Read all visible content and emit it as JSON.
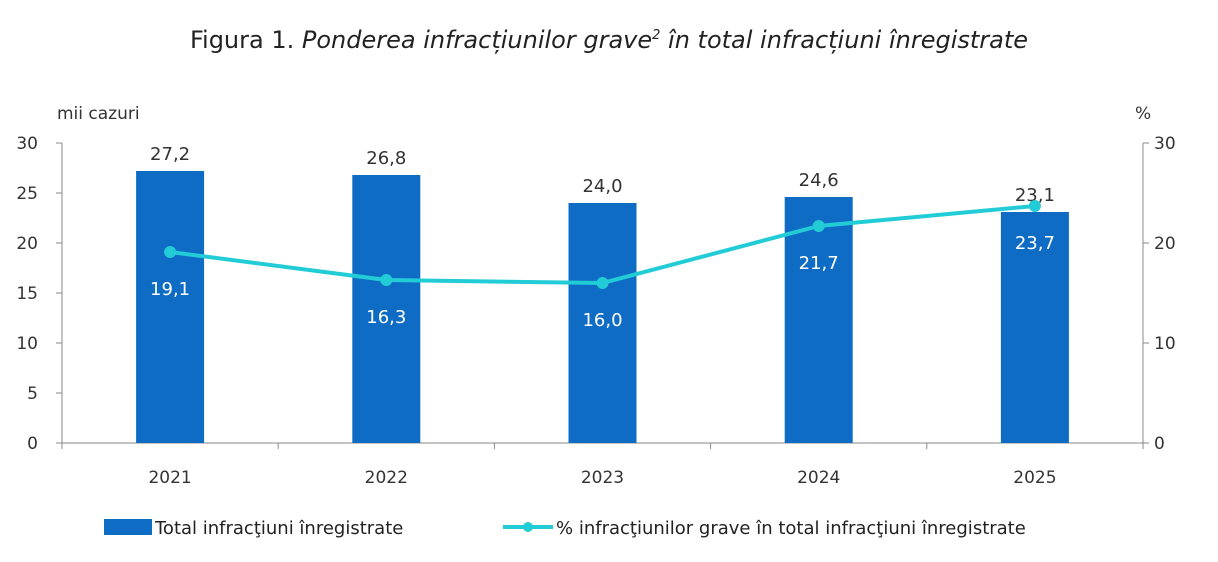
{
  "chart_data": {
    "type": "bar",
    "title_prefix": "Figura 1.",
    "title_main": "Ponderea infracțiunilor grave",
    "title_sup": "2",
    "title_rest": " în total infracțiuni înregistrate",
    "ylabel_left": "mii cazuri",
    "ylabel_right": "%",
    "ylim_left": [
      0,
      30
    ],
    "ylim_right": [
      0,
      30
    ],
    "yticks": [
      "0",
      "5",
      "10",
      "15",
      "20",
      "25",
      "30"
    ],
    "yticks_right": [
      "0",
      "10",
      "20",
      "30"
    ],
    "categories": [
      "2021",
      "2022",
      "2023",
      "2024",
      "2025"
    ],
    "series": [
      {
        "name": "Total infracţiuni înregistrate",
        "type": "bar",
        "axis": "left",
        "color": "#0f6cc4",
        "values": [
          27.2,
          26.8,
          24.0,
          24.6,
          23.1
        ],
        "labels": [
          "27,2",
          "26,8",
          "24,0",
          "24,6",
          "23,1"
        ]
      },
      {
        "name": "% infracţiunilor grave în total infracţiuni înregistrate",
        "type": "line",
        "axis": "right",
        "color": "#22ccd6",
        "values": [
          19.1,
          16.3,
          16.0,
          21.7,
          23.7
        ],
        "labels": [
          "19,1",
          "16,3",
          "16,0",
          "21,7",
          "23,7"
        ]
      }
    ],
    "legend": "bottom"
  }
}
